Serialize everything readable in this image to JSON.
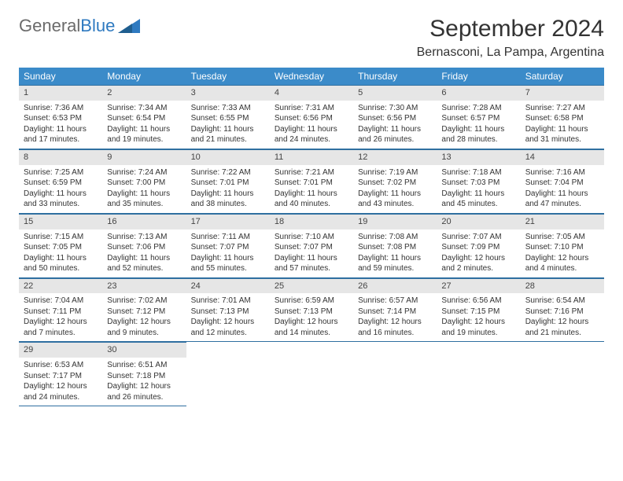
{
  "brand": {
    "part1": "General",
    "part2": "Blue"
  },
  "header": {
    "month_title": "September 2024",
    "location": "Bernasconi, La Pampa, Argentina"
  },
  "colors": {
    "header_bg": "#3b8bc9",
    "daynum_bg": "#e6e6e6",
    "rule": "#2f6fa0",
    "brand_blue": "#2f7ac0"
  },
  "weekdays": [
    "Sunday",
    "Monday",
    "Tuesday",
    "Wednesday",
    "Thursday",
    "Friday",
    "Saturday"
  ],
  "days": [
    {
      "n": 1,
      "sr": "7:36 AM",
      "ss": "6:53 PM",
      "dl": "11 hours and 17 minutes."
    },
    {
      "n": 2,
      "sr": "7:34 AM",
      "ss": "6:54 PM",
      "dl": "11 hours and 19 minutes."
    },
    {
      "n": 3,
      "sr": "7:33 AM",
      "ss": "6:55 PM",
      "dl": "11 hours and 21 minutes."
    },
    {
      "n": 4,
      "sr": "7:31 AM",
      "ss": "6:56 PM",
      "dl": "11 hours and 24 minutes."
    },
    {
      "n": 5,
      "sr": "7:30 AM",
      "ss": "6:56 PM",
      "dl": "11 hours and 26 minutes."
    },
    {
      "n": 6,
      "sr": "7:28 AM",
      "ss": "6:57 PM",
      "dl": "11 hours and 28 minutes."
    },
    {
      "n": 7,
      "sr": "7:27 AM",
      "ss": "6:58 PM",
      "dl": "11 hours and 31 minutes."
    },
    {
      "n": 8,
      "sr": "7:25 AM",
      "ss": "6:59 PM",
      "dl": "11 hours and 33 minutes."
    },
    {
      "n": 9,
      "sr": "7:24 AM",
      "ss": "7:00 PM",
      "dl": "11 hours and 35 minutes."
    },
    {
      "n": 10,
      "sr": "7:22 AM",
      "ss": "7:01 PM",
      "dl": "11 hours and 38 minutes."
    },
    {
      "n": 11,
      "sr": "7:21 AM",
      "ss": "7:01 PM",
      "dl": "11 hours and 40 minutes."
    },
    {
      "n": 12,
      "sr": "7:19 AM",
      "ss": "7:02 PM",
      "dl": "11 hours and 43 minutes."
    },
    {
      "n": 13,
      "sr": "7:18 AM",
      "ss": "7:03 PM",
      "dl": "11 hours and 45 minutes."
    },
    {
      "n": 14,
      "sr": "7:16 AM",
      "ss": "7:04 PM",
      "dl": "11 hours and 47 minutes."
    },
    {
      "n": 15,
      "sr": "7:15 AM",
      "ss": "7:05 PM",
      "dl": "11 hours and 50 minutes."
    },
    {
      "n": 16,
      "sr": "7:13 AM",
      "ss": "7:06 PM",
      "dl": "11 hours and 52 minutes."
    },
    {
      "n": 17,
      "sr": "7:11 AM",
      "ss": "7:07 PM",
      "dl": "11 hours and 55 minutes."
    },
    {
      "n": 18,
      "sr": "7:10 AM",
      "ss": "7:07 PM",
      "dl": "11 hours and 57 minutes."
    },
    {
      "n": 19,
      "sr": "7:08 AM",
      "ss": "7:08 PM",
      "dl": "11 hours and 59 minutes."
    },
    {
      "n": 20,
      "sr": "7:07 AM",
      "ss": "7:09 PM",
      "dl": "12 hours and 2 minutes."
    },
    {
      "n": 21,
      "sr": "7:05 AM",
      "ss": "7:10 PM",
      "dl": "12 hours and 4 minutes."
    },
    {
      "n": 22,
      "sr": "7:04 AM",
      "ss": "7:11 PM",
      "dl": "12 hours and 7 minutes."
    },
    {
      "n": 23,
      "sr": "7:02 AM",
      "ss": "7:12 PM",
      "dl": "12 hours and 9 minutes."
    },
    {
      "n": 24,
      "sr": "7:01 AM",
      "ss": "7:13 PM",
      "dl": "12 hours and 12 minutes."
    },
    {
      "n": 25,
      "sr": "6:59 AM",
      "ss": "7:13 PM",
      "dl": "12 hours and 14 minutes."
    },
    {
      "n": 26,
      "sr": "6:57 AM",
      "ss": "7:14 PM",
      "dl": "12 hours and 16 minutes."
    },
    {
      "n": 27,
      "sr": "6:56 AM",
      "ss": "7:15 PM",
      "dl": "12 hours and 19 minutes."
    },
    {
      "n": 28,
      "sr": "6:54 AM",
      "ss": "7:16 PM",
      "dl": "12 hours and 21 minutes."
    },
    {
      "n": 29,
      "sr": "6:53 AM",
      "ss": "7:17 PM",
      "dl": "12 hours and 24 minutes."
    },
    {
      "n": 30,
      "sr": "6:51 AM",
      "ss": "7:18 PM",
      "dl": "12 hours and 26 minutes."
    }
  ],
  "labels": {
    "sunrise": "Sunrise:",
    "sunset": "Sunset:",
    "daylight": "Daylight:"
  }
}
